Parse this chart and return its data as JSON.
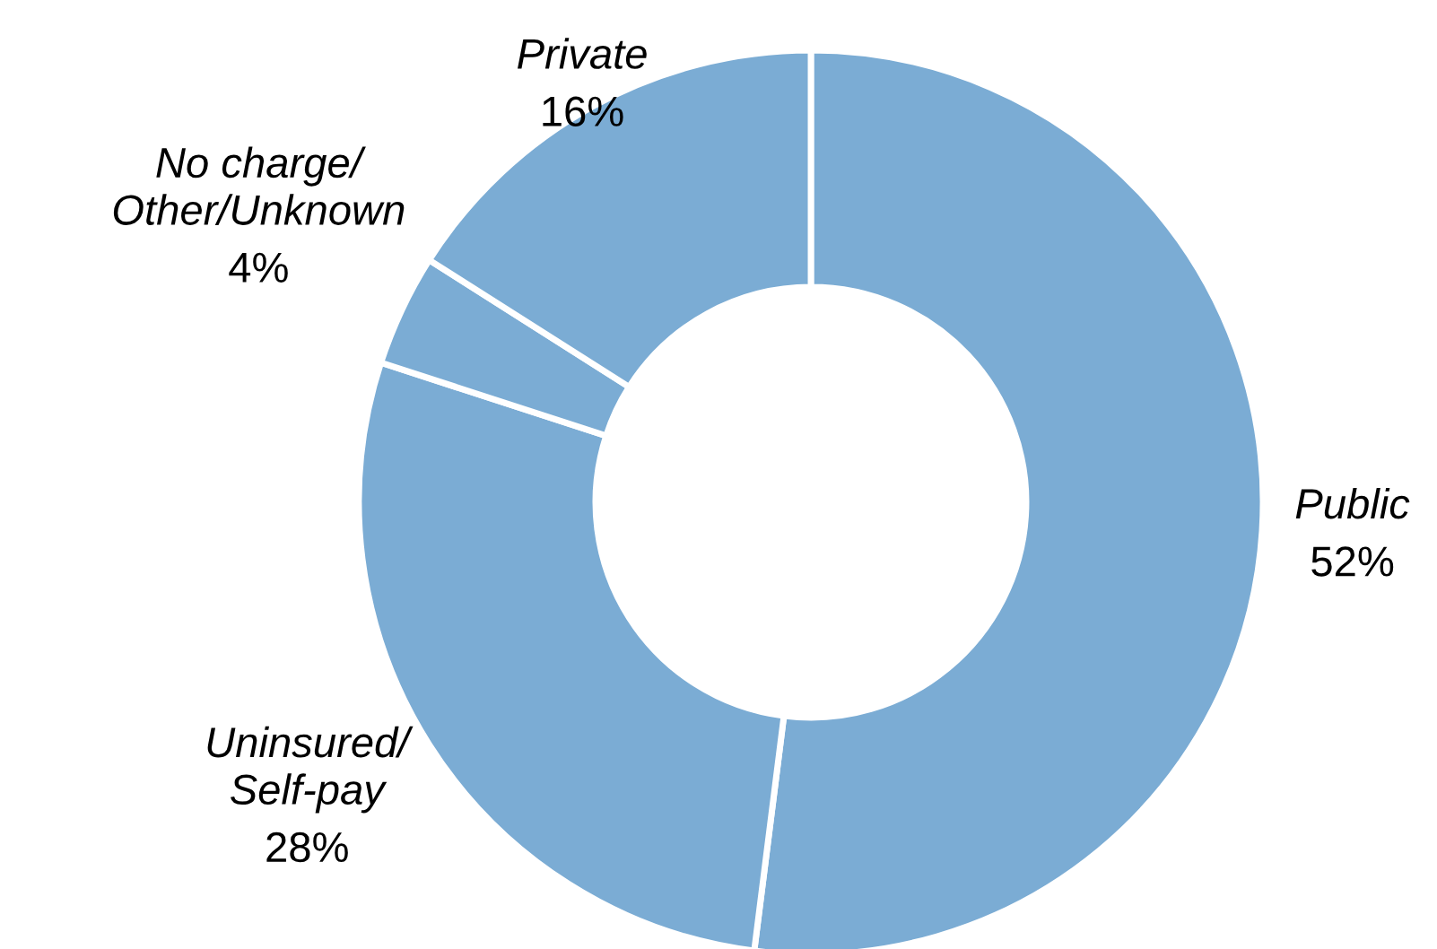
{
  "chart_data": {
    "type": "donut",
    "categories": [
      "Public",
      "Uninsured/\nSelf-pay",
      "No charge/\nOther/Unknown",
      "Private"
    ],
    "values": [
      52,
      28,
      4,
      16
    ],
    "value_labels": [
      "52%",
      "28%",
      "4%",
      "16%"
    ],
    "colors": [
      "#7bacd4",
      "#7bacd4",
      "#7bacd4",
      "#7bacd4"
    ],
    "legend": false
  }
}
